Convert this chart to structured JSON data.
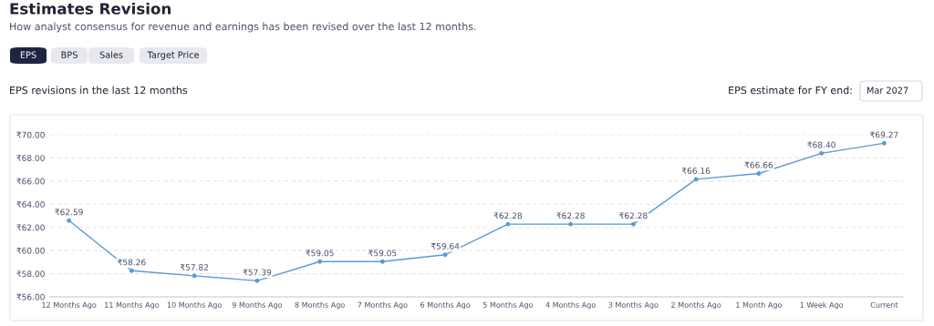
{
  "chart_data": {
    "type": "line",
    "title": "Estimates Revision",
    "subtitle": "How analyst consensus for revenue and earnings has been revised over the last 12 months.",
    "annotations": [
      "EPS",
      "BPS",
      "Sales",
      "Target Price",
      "EPS revisions in the last 12 months",
      "EPS estimate for FY end:",
      "Mar 2027"
    ],
    "categories": [
      "12 Months Ago",
      "11 Months Ago",
      "10 Months Ago",
      "9 Months Ago",
      "8 Months Ago",
      "7 Months Ago",
      "6 Months Ago",
      "5 Months Ago",
      "4 Months Ago",
      "3 Months Ago",
      "2 Months Ago",
      "1 Month Ago",
      "1 Week Ago",
      "Current"
    ],
    "series": [
      {
        "color": "#5b9bd5",
        "values": [
          62.59,
          58.26,
          57.82,
          57.39,
          59.05,
          59.05,
          59.64,
          62.28,
          62.28,
          62.28,
          66.16,
          66.66,
          68.4,
          69.27
        ],
        "value_labels": [
          "₹62.59",
          "₹58.26",
          "₹57.82",
          "₹57.39",
          "₹59.05",
          "₹59.05",
          "₹59.64",
          "₹62.28",
          "₹62.28",
          "₹62.28",
          "₹66.16",
          "₹66.66",
          "₹68.40",
          "₹69.27"
        ]
      }
    ],
    "ylim": [
      56,
      70
    ],
    "yticks": [
      {
        "value": 56,
        "label": "₹56.00"
      },
      {
        "value": 58,
        "label": "₹58.00"
      },
      {
        "value": 60,
        "label": "₹60.00"
      },
      {
        "value": 62,
        "label": "₹62.00"
      },
      {
        "value": 64,
        "label": "₹64.00"
      },
      {
        "value": 66,
        "label": "₹66.00"
      },
      {
        "value": 68,
        "label": "₹68.00"
      },
      {
        "value": 70,
        "label": "₹70.00"
      }
    ],
    "grid": "y",
    "marker": "circle",
    "line_style": "solid",
    "legend": false
  }
}
